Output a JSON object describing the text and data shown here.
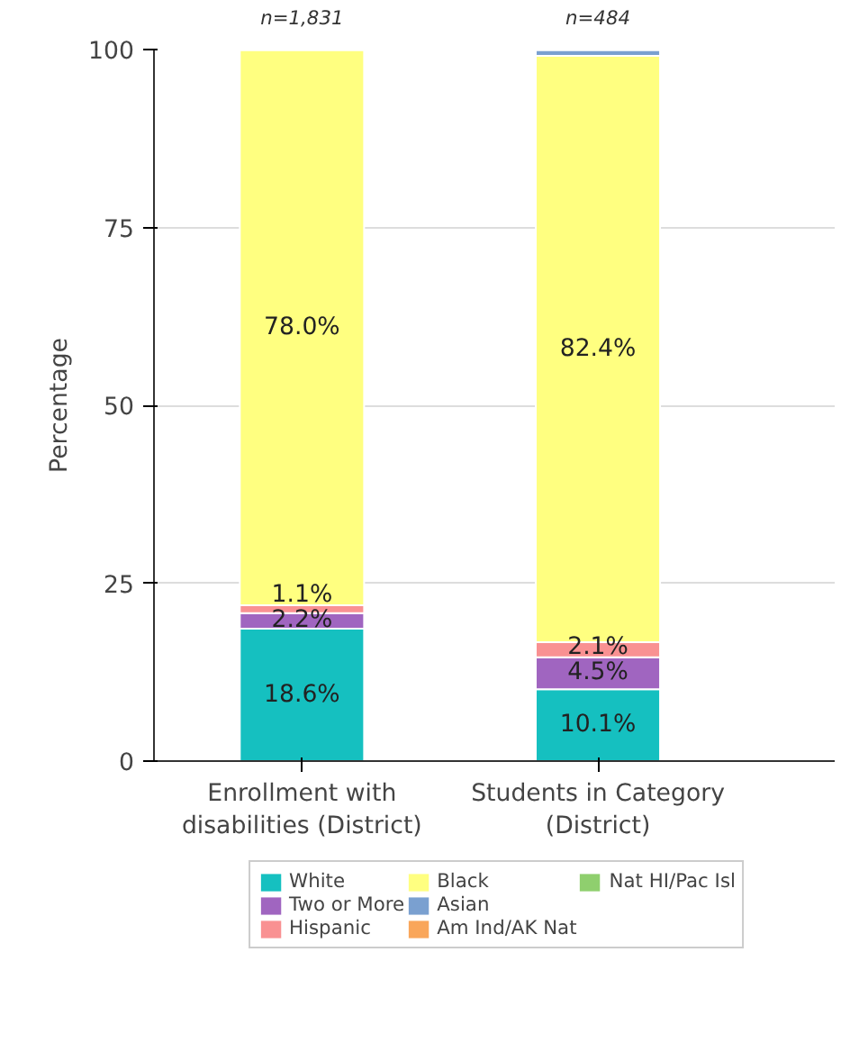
{
  "chart_data": {
    "type": "bar",
    "stacked": true,
    "ylabel": "Percentage",
    "categories": [
      "Enrollment with\ndisabilities (District)",
      "Students in Category\n(District)"
    ],
    "series": [
      {
        "name": "White",
        "color": "#15c0c0",
        "values": [
          18.6,
          10.1
        ],
        "value_labels": [
          "18.6%",
          "10.1%"
        ]
      },
      {
        "name": "Two or More",
        "color": "#a065c0",
        "values": [
          2.2,
          4.5
        ],
        "value_labels": [
          "2.2%",
          "4.5%"
        ]
      },
      {
        "name": "Hispanic",
        "color": "#f99192",
        "values": [
          1.1,
          2.1
        ],
        "value_labels": [
          "1.1%",
          "2.1%"
        ]
      },
      {
        "name": "Black",
        "color": "#ffff80",
        "values": [
          78.0,
          82.4
        ],
        "value_labels": [
          "78.0%",
          "82.4%"
        ]
      },
      {
        "name": "Asian",
        "color": "#7aa0d0",
        "values": [
          null,
          0.8
        ],
        "value_labels": [
          null,
          null
        ]
      },
      {
        "name": "Am Ind/AK Nat",
        "color": "#f9a65a",
        "values": [
          null,
          null
        ]
      },
      {
        "name": "Nat HI/Pac Isl",
        "color": "#8fcf6e",
        "values": [
          null,
          null
        ]
      }
    ],
    "ylim": [
      0,
      100
    ],
    "yticks": [
      0,
      25,
      50,
      75,
      100
    ],
    "grid": "y",
    "legend": "bottom",
    "annotations": [
      "n=1,831",
      "n=484"
    ]
  }
}
